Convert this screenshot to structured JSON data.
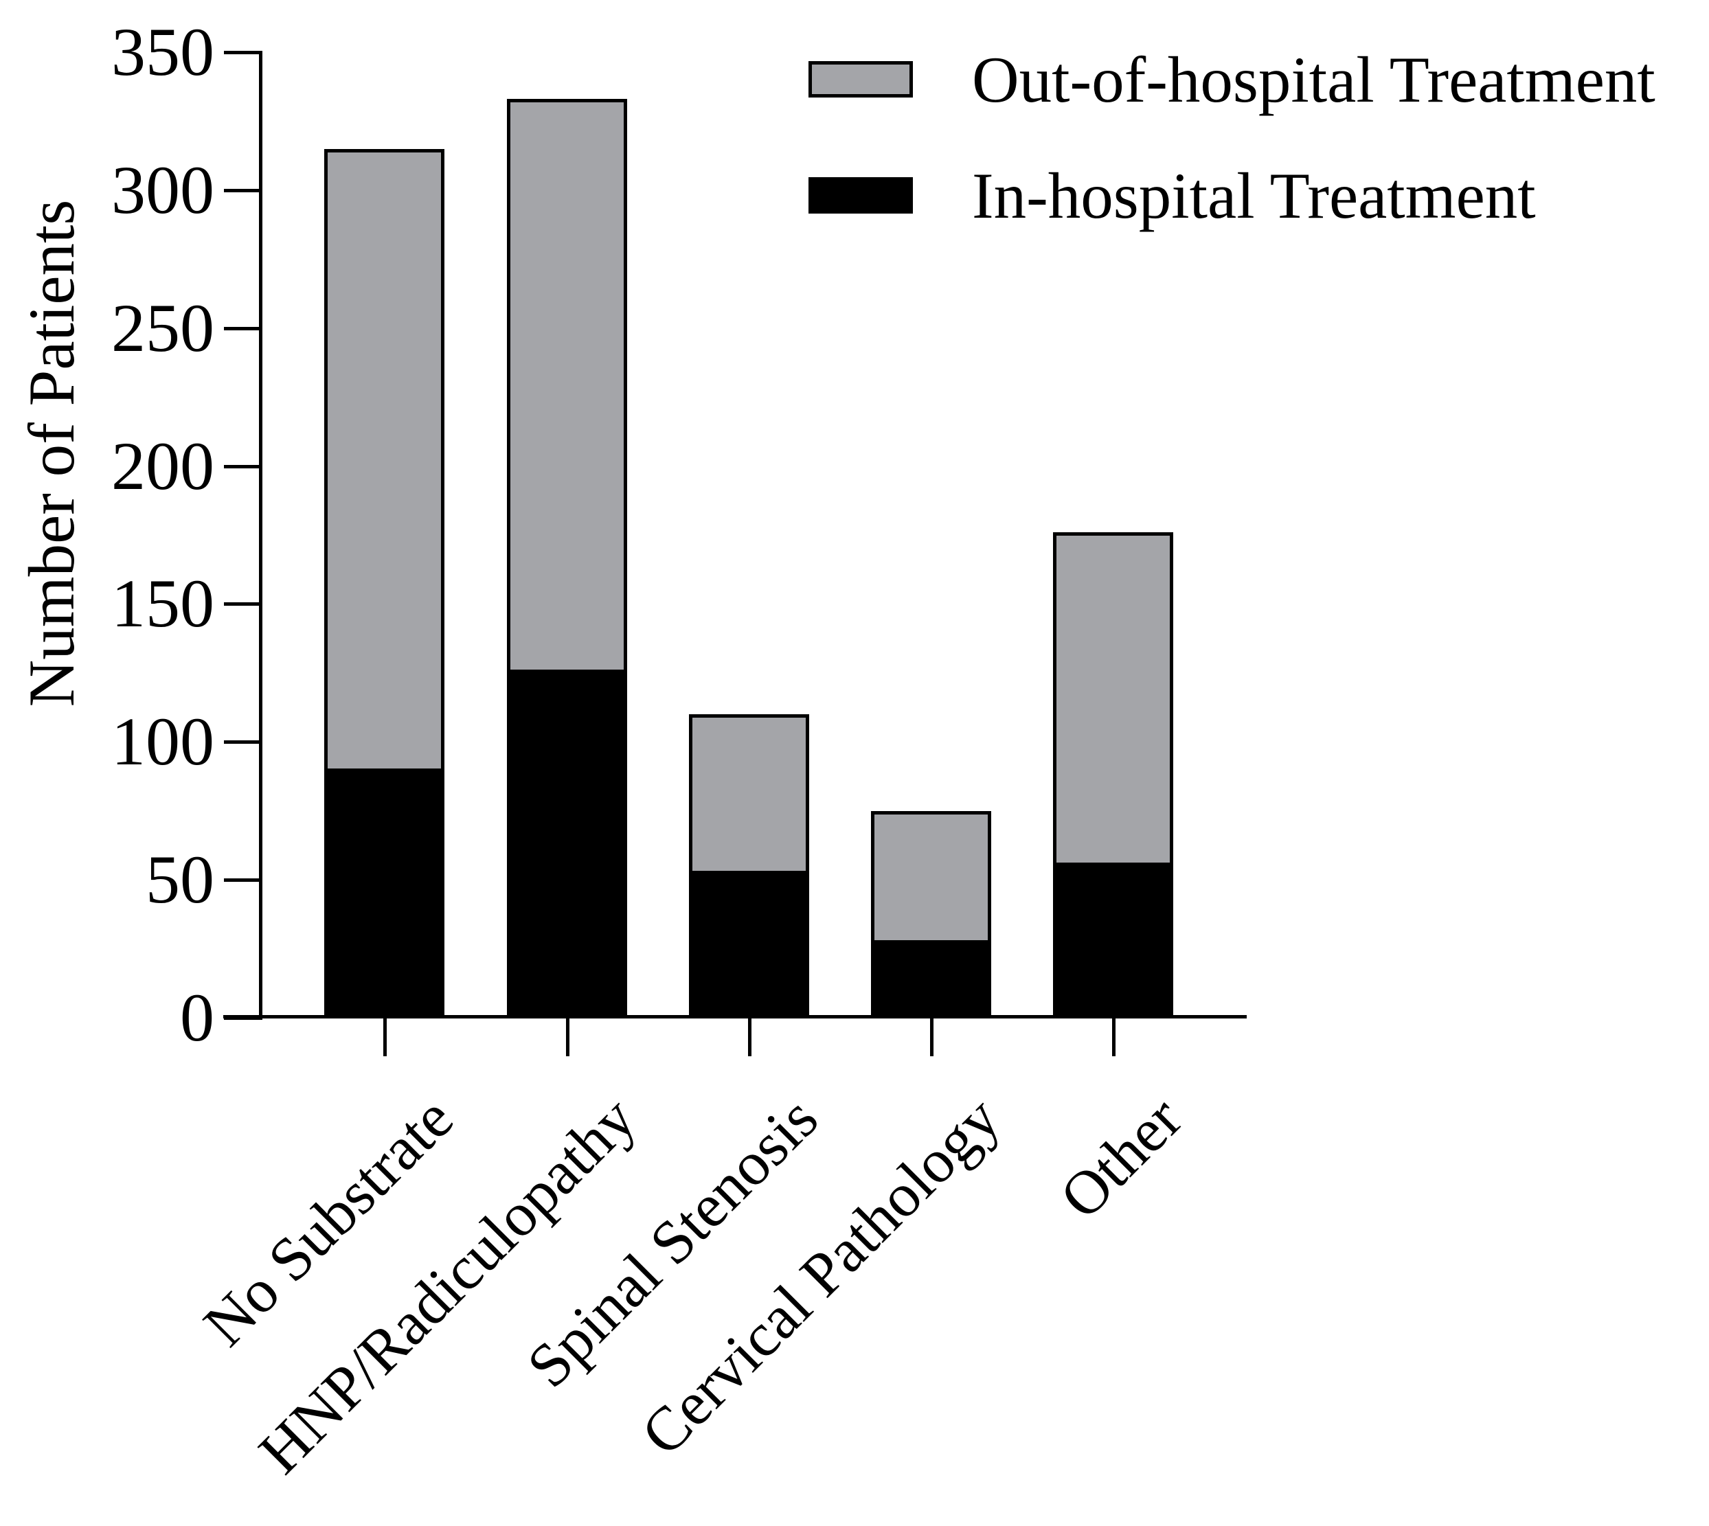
{
  "figure": {
    "background": "#ffffff",
    "axis_color": "#000000"
  },
  "chart_data": {
    "type": "bar",
    "stacked": true,
    "orientation": "vertical",
    "title": "",
    "xlabel": "",
    "ylabel": "Number of Patients",
    "categories": [
      "No Substrate",
      "HNP/Radiculopathy",
      "Spinal Stenosis",
      "Cervical Pathology",
      "Other"
    ],
    "series": [
      {
        "name": "In-hospital Treatment",
        "color": "#000000",
        "values": [
          89,
          125,
          52,
          27,
          55
        ]
      },
      {
        "name": "Out-of-hospital Treatment",
        "color": "#A4A5A9",
        "values": [
          226,
          208,
          58,
          48,
          121
        ]
      }
    ],
    "stack_totals": [
      315,
      333,
      110,
      75,
      176
    ],
    "ylim": [
      0,
      350
    ],
    "yticks": [
      0,
      50,
      100,
      150,
      200,
      250,
      300,
      350
    ],
    "grid": false,
    "x_tick_label_rotation_deg": 45,
    "legend": {
      "position": "top-right",
      "entries": [
        {
          "label": "Out-of-hospital Treatment",
          "color": "#A4A5A9"
        },
        {
          "label": "In-hospital Treatment",
          "color": "#000000"
        }
      ]
    }
  }
}
